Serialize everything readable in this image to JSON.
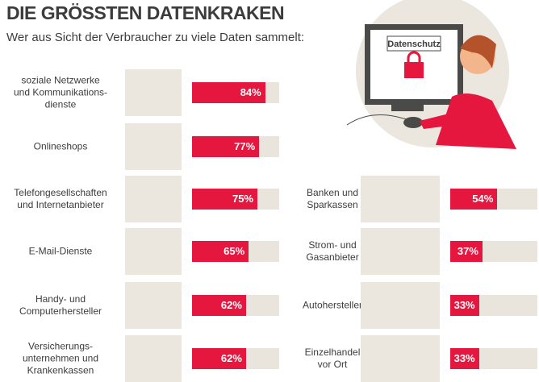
{
  "chart_data": {
    "type": "bar",
    "title": "DIE GRÖSSTEN DATENKRAKEN",
    "subtitle": "Wer aus Sicht der Verbraucher zu viele Daten sammelt:",
    "annotation": "Datenschutz",
    "categories": [
      "soziale Netzwerke\nund Kommunikations-\ndienste",
      "Onlineshops",
      "Telefongesellschaften\nund Internetanbieter",
      "E-Mail-Dienste",
      "Handy- und\nComputerhersteller",
      "Versicherungs-\nunternehmen und\nKrankenkassen",
      "Banken und\nSparkassen",
      "Strom- und\nGasanbieter",
      "Autohersteller",
      "Einzelhandel\nvor Ort"
    ],
    "values": [
      84,
      77,
      75,
      65,
      62,
      62,
      54,
      37,
      33,
      33
    ],
    "value_labels": [
      "84%",
      "77%",
      "75%",
      "65%",
      "62%",
      "62%",
      "54%",
      "37%",
      "33%",
      "33%"
    ],
    "xlim": [
      0,
      100
    ],
    "color": "#e5173f",
    "track_color": "#e9e5dd"
  }
}
